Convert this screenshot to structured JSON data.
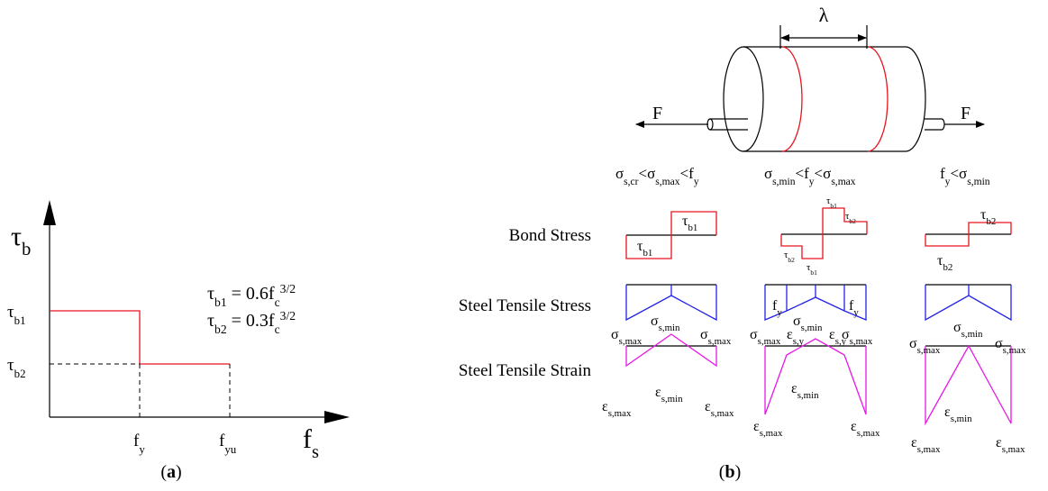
{
  "panel_a": {
    "y_axis": [
      {
        "t": "τ"
      },
      {
        "sub": "b"
      }
    ],
    "x_axis": [
      {
        "t": "f"
      },
      {
        "sub": "s"
      }
    ],
    "tau_b1": [
      {
        "t": "τ"
      },
      {
        "sub": "b1"
      }
    ],
    "tau_b2": [
      {
        "t": "τ"
      },
      {
        "sub": "b2"
      }
    ],
    "fy": [
      {
        "t": "f"
      },
      {
        "sub": "y"
      }
    ],
    "fyu": [
      {
        "t": "f"
      },
      {
        "sub": "yu"
      }
    ],
    "eq1": [
      {
        "t": "τ"
      },
      {
        "sub": "b1"
      },
      {
        "t": " = 0.6f"
      },
      {
        "sub": "c"
      },
      {
        "sup": "3/2"
      }
    ],
    "eq2": [
      {
        "t": "τ"
      },
      {
        "sub": "b2"
      },
      {
        "t": " = 0.3f"
      },
      {
        "sub": "c"
      },
      {
        "sup": "3/2"
      }
    ],
    "caption": [
      {
        "t": "("
      },
      {
        "b": "a"
      },
      {
        "t": ")"
      }
    ]
  },
  "panel_b": {
    "lambda": [
      {
        "t": "λ"
      }
    ],
    "force_left": [
      {
        "t": "F"
      }
    ],
    "force_right": [
      {
        "t": "F"
      }
    ],
    "columns": [
      [
        {
          "t": "σ"
        },
        {
          "sub": "s,cr"
        },
        {
          "t": "<σ"
        },
        {
          "sub": "s,max"
        },
        {
          "t": "<f"
        },
        {
          "sub": "y"
        }
      ],
      [
        {
          "t": "σ"
        },
        {
          "sub": "s,min"
        },
        {
          "t": "<f"
        },
        {
          "sub": "y"
        },
        {
          "t": "<σ"
        },
        {
          "sub": "s,max"
        }
      ],
      [
        {
          "t": "f"
        },
        {
          "sub": "y"
        },
        {
          "t": "<σ"
        },
        {
          "sub": "s,min"
        }
      ]
    ],
    "rows": [
      [
        {
          "t": "Bond Stress"
        }
      ],
      [
        {
          "t": "Steel Tensile Stress"
        }
      ],
      [
        {
          "t": "Steel Tensile Strain"
        }
      ]
    ],
    "bond_labels": [
      [
        {
          "t": "τ"
        },
        {
          "sub": "b1"
        }
      ],
      [
        {
          "t": "τ"
        },
        {
          "sub": "b1"
        }
      ],
      [
        {
          "t": "τ"
        },
        {
          "sub": "b1"
        }
      ],
      [
        {
          "t": "τ"
        },
        {
          "sub": "b2"
        }
      ],
      [
        {
          "t": "τ"
        },
        {
          "sub": "b2"
        }
      ],
      [
        {
          "t": "τ"
        },
        {
          "sub": "b1"
        }
      ],
      [
        {
          "t": "τ"
        },
        {
          "sub": "b2"
        }
      ],
      [
        {
          "t": "τ"
        },
        {
          "sub": "b2"
        }
      ]
    ],
    "stress_labels": [
      [
        {
          "t": "σ"
        },
        {
          "sub": "s,max"
        }
      ],
      [
        {
          "t": "σ"
        },
        {
          "sub": "s,min"
        }
      ],
      [
        {
          "t": "σ"
        },
        {
          "sub": "s,max"
        }
      ],
      [
        {
          "t": "f"
        },
        {
          "sub": "y"
        }
      ],
      [
        {
          "t": "f"
        },
        {
          "sub": "y"
        }
      ],
      [
        {
          "t": "σ"
        },
        {
          "sub": "s,max"
        }
      ],
      [
        {
          "t": "σ"
        },
        {
          "sub": "s,min"
        }
      ],
      [
        {
          "t": "σ"
        },
        {
          "sub": "s,max"
        }
      ],
      [
        {
          "t": "σ"
        },
        {
          "sub": "s,max"
        }
      ],
      [
        {
          "t": "σ"
        },
        {
          "sub": "s,min"
        }
      ],
      [
        {
          "t": "σ"
        },
        {
          "sub": "s,max"
        }
      ]
    ],
    "strain_labels": [
      [
        {
          "t": "ε"
        },
        {
          "sub": "s,max"
        }
      ],
      [
        {
          "t": "ε"
        },
        {
          "sub": "s,min"
        }
      ],
      [
        {
          "t": "ε"
        },
        {
          "sub": "s,max"
        }
      ],
      [
        {
          "t": "ε"
        },
        {
          "sub": "s,y"
        }
      ],
      [
        {
          "t": "ε"
        },
        {
          "sub": "s,y"
        }
      ],
      [
        {
          "t": "ε"
        },
        {
          "sub": "s,min"
        }
      ],
      [
        {
          "t": "ε"
        },
        {
          "sub": "s,max"
        }
      ],
      [
        {
          "t": "ε"
        },
        {
          "sub": "s,max"
        }
      ],
      [
        {
          "t": "ε"
        },
        {
          "sub": "s,max"
        }
      ],
      [
        {
          "t": "ε"
        },
        {
          "sub": "s,min"
        }
      ],
      [
        {
          "t": "ε"
        },
        {
          "sub": "s,max"
        }
      ]
    ],
    "caption": [
      {
        "t": "("
      },
      {
        "b": "b"
      },
      {
        "t": ")"
      }
    ]
  }
}
